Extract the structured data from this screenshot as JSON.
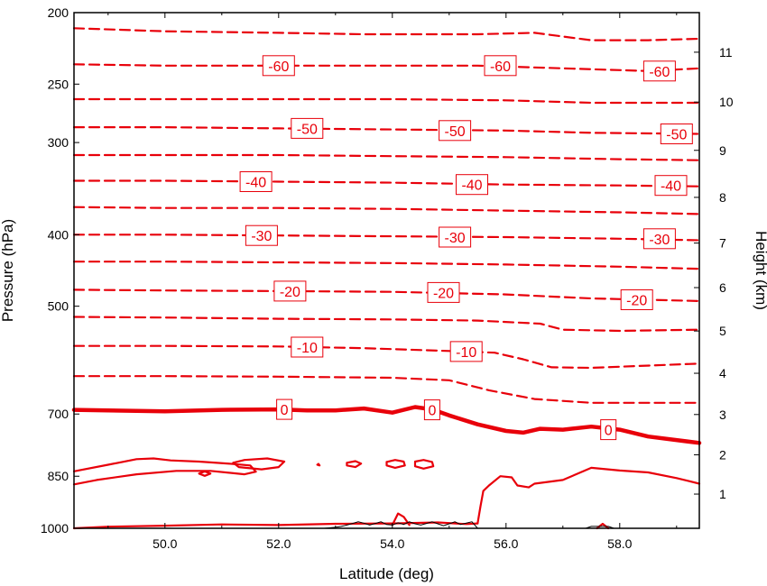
{
  "chart_data": {
    "type": "contour",
    "title": "",
    "xlabel": "Latitude (deg)",
    "ylabel_left": "Pressure (hPa)",
    "ylabel_right": "Height (km)",
    "xlim": [
      48.4,
      59.4
    ],
    "ylim_pressure": [
      1000,
      200
    ],
    "y_scale": "log-pressure",
    "grid": false,
    "x_ticks": [
      "50.0",
      "52.0",
      "54.0",
      "56.0",
      "58.0"
    ],
    "x_tick_values": [
      50,
      52,
      54,
      56,
      58
    ],
    "pressure_ticks": [
      1000,
      850,
      700,
      500,
      400,
      300,
      250,
      200
    ],
    "height_ticks": [
      1,
      2,
      3,
      4,
      5,
      6,
      7,
      8,
      9,
      10,
      11
    ],
    "height_tick_pressures": [
      898.7,
      795.0,
      701.1,
      616.4,
      540.2,
      471.8,
      410.6,
      356.0,
      307.4,
      264.4,
      226.3
    ],
    "line_color": "#e8000a",
    "terrain_color": "#000000",
    "contour_interval": 5,
    "contours": [
      {
        "level": -65,
        "points": [
          [
            48.4,
            210
          ],
          [
            50,
            212
          ],
          [
            52,
            213
          ],
          [
            53.5,
            214
          ],
          [
            54.5,
            214
          ],
          [
            55.5,
            214
          ],
          [
            56.5,
            213
          ],
          [
            57.5,
            218
          ],
          [
            58.5,
            218
          ],
          [
            59.4,
            217
          ]
        ]
      },
      {
        "level": -60,
        "points": [
          [
            48.4,
            235
          ],
          [
            50,
            236
          ],
          [
            52,
            236
          ],
          [
            54,
            236
          ],
          [
            55.5,
            236
          ],
          [
            57,
            238
          ],
          [
            58.5,
            240
          ],
          [
            59.4,
            238
          ]
        ]
      },
      {
        "level": -55,
        "points": [
          [
            48.4,
            262
          ],
          [
            50,
            262
          ],
          [
            52,
            262
          ],
          [
            54,
            262
          ],
          [
            56,
            263
          ],
          [
            57.5,
            265
          ],
          [
            59.4,
            265
          ]
        ]
      },
      {
        "level": -50,
        "points": [
          [
            48.4,
            286
          ],
          [
            50,
            286
          ],
          [
            52,
            287
          ],
          [
            54,
            288
          ],
          [
            56,
            289
          ],
          [
            57.5,
            291
          ],
          [
            59.4,
            292
          ]
        ]
      },
      {
        "level": -45,
        "points": [
          [
            48.4,
            312
          ],
          [
            50,
            312
          ],
          [
            52,
            312
          ],
          [
            54,
            313
          ],
          [
            56,
            314
          ],
          [
            58,
            316
          ],
          [
            59.4,
            317
          ]
        ]
      },
      {
        "level": -40,
        "points": [
          [
            48.4,
            338
          ],
          [
            50,
            338
          ],
          [
            52,
            339
          ],
          [
            54,
            340
          ],
          [
            56,
            342
          ],
          [
            58,
            343
          ],
          [
            59.4,
            344
          ]
        ]
      },
      {
        "level": -35,
        "points": [
          [
            48.4,
            367
          ],
          [
            50,
            368
          ],
          [
            52,
            368
          ],
          [
            54,
            369
          ],
          [
            56,
            371
          ],
          [
            58,
            373
          ],
          [
            59.4,
            375
          ]
        ]
      },
      {
        "level": -30,
        "points": [
          [
            48.4,
            400
          ],
          [
            50,
            400
          ],
          [
            52,
            401
          ],
          [
            54,
            402
          ],
          [
            56,
            403
          ],
          [
            58,
            405
          ],
          [
            59.4,
            407
          ]
        ]
      },
      {
        "level": -25,
        "points": [
          [
            48.4,
            435
          ],
          [
            50,
            435
          ],
          [
            52,
            436
          ],
          [
            54,
            437
          ],
          [
            56,
            439
          ],
          [
            58,
            442
          ],
          [
            59.4,
            445
          ]
        ]
      },
      {
        "level": -20,
        "points": [
          [
            48.4,
            475
          ],
          [
            50,
            476
          ],
          [
            52,
            477
          ],
          [
            54,
            478
          ],
          [
            56,
            482
          ],
          [
            57.5,
            488
          ],
          [
            59.4,
            492
          ]
        ]
      },
      {
        "level": -15,
        "points": [
          [
            48.4,
            517
          ],
          [
            50,
            518
          ],
          [
            52,
            520
          ],
          [
            54,
            521
          ],
          [
            55.5,
            523
          ],
          [
            56.6,
            528
          ],
          [
            57,
            538
          ],
          [
            58,
            540
          ],
          [
            59.4,
            538
          ]
        ]
      },
      {
        "level": -10,
        "points": [
          [
            48.4,
            566
          ],
          [
            50,
            566
          ],
          [
            52,
            567
          ],
          [
            53.5,
            570
          ],
          [
            55,
            575
          ],
          [
            55.8,
            578
          ],
          [
            56.3,
            590
          ],
          [
            56.8,
            605
          ],
          [
            57.5,
            606
          ],
          [
            59.4,
            598
          ]
        ]
      },
      {
        "level": -5,
        "points": [
          [
            48.4,
            622
          ],
          [
            50,
            622
          ],
          [
            52,
            623
          ],
          [
            54,
            625
          ],
          [
            55,
            630
          ],
          [
            55.7,
            650
          ],
          [
            56.5,
            668
          ],
          [
            57.5,
            676
          ],
          [
            58.5,
            676
          ],
          [
            59.4,
            676
          ]
        ]
      },
      {
        "level": 0,
        "points": [
          [
            48.4,
            691
          ],
          [
            49,
            692
          ],
          [
            50,
            694
          ],
          [
            51,
            691
          ],
          [
            52,
            690
          ],
          [
            52.5,
            692
          ],
          [
            53,
            692
          ],
          [
            53.5,
            688
          ],
          [
            54,
            697
          ],
          [
            54.4,
            685
          ],
          [
            54.7,
            690
          ],
          [
            55,
            703
          ],
          [
            55.5,
            723
          ],
          [
            56,
            738
          ],
          [
            56.3,
            742
          ],
          [
            56.6,
            733
          ],
          [
            57,
            735
          ],
          [
            57.5,
            728
          ],
          [
            58,
            735
          ],
          [
            58.5,
            751
          ],
          [
            59.4,
            766
          ]
        ]
      },
      {
        "level": 5,
        "points": [
          [
            48.4,
            837
          ],
          [
            49,
            820
          ],
          [
            49.5,
            806
          ],
          [
            49.8,
            804
          ],
          [
            50.1,
            809
          ],
          [
            50.6,
            812
          ],
          [
            51.2,
            818
          ],
          [
            51.5,
            822
          ],
          [
            51.6,
            838
          ],
          [
            51.4,
            845
          ],
          [
            50.8,
            836
          ],
          [
            50.2,
            836
          ],
          [
            49.5,
            845
          ],
          [
            48.8,
            860
          ],
          [
            48.4,
            872
          ]
        ]
      },
      {
        "level": 5,
        "points": [
          [
            50.7,
            837
          ],
          [
            50.8,
            843
          ],
          [
            50.7,
            849
          ],
          [
            50.6,
            843
          ],
          [
            50.7,
            837
          ]
        ]
      },
      {
        "level": 5,
        "points": [
          [
            51.2,
            815
          ],
          [
            51.4,
            808
          ],
          [
            51.8,
            804
          ],
          [
            52.1,
            812
          ],
          [
            52,
            826
          ],
          [
            51.7,
            832
          ],
          [
            51.3,
            826
          ],
          [
            51.2,
            815
          ]
        ]
      },
      {
        "level": 5,
        "points": [
          [
            52.7,
            818
          ],
          [
            52.72,
            822
          ],
          [
            52.68,
            820
          ],
          [
            52.7,
            818
          ]
        ]
      },
      {
        "level": 5,
        "points": [
          [
            53.9,
            813
          ],
          [
            54.05,
            808
          ],
          [
            54.2,
            812
          ],
          [
            54.22,
            822
          ],
          [
            54.05,
            828
          ],
          [
            53.9,
            822
          ],
          [
            53.9,
            813
          ]
        ]
      },
      {
        "level": 5,
        "points": [
          [
            54.4,
            812
          ],
          [
            54.55,
            808
          ],
          [
            54.7,
            813
          ],
          [
            54.72,
            824
          ],
          [
            54.55,
            830
          ],
          [
            54.4,
            824
          ],
          [
            54.4,
            812
          ]
        ]
      },
      {
        "level": 5,
        "points": [
          [
            53.2,
            815
          ],
          [
            53.35,
            811
          ],
          [
            53.45,
            817
          ],
          [
            53.35,
            826
          ],
          [
            53.2,
            822
          ],
          [
            53.2,
            815
          ]
        ]
      },
      {
        "level": 5,
        "points": [
          [
            55.5,
            985
          ],
          [
            55.55,
            935
          ],
          [
            55.6,
            890
          ],
          [
            55.7,
            875
          ],
          [
            55.9,
            850
          ],
          [
            56.1,
            853
          ],
          [
            56.2,
            875
          ],
          [
            56.4,
            880
          ],
          [
            56.5,
            870
          ],
          [
            57,
            860
          ],
          [
            57.5,
            828
          ],
          [
            58,
            835
          ],
          [
            58.5,
            840
          ],
          [
            59,
            855
          ],
          [
            59.4,
            870
          ]
        ]
      },
      {
        "level": 10,
        "points": [
          [
            48.4,
            1000
          ],
          [
            49,
            995
          ],
          [
            50,
            992
          ],
          [
            51,
            988
          ],
          [
            52,
            990
          ],
          [
            53,
            986
          ],
          [
            54,
            985
          ],
          [
            54.8,
            982
          ],
          [
            55.3,
            987
          ],
          [
            55.5,
            985
          ]
        ]
      },
      {
        "level": 10,
        "points": [
          [
            54,
            990
          ],
          [
            54.1,
            955
          ],
          [
            54.2,
            965
          ],
          [
            54.3,
            990
          ]
        ]
      },
      {
        "level": 10,
        "points": [
          [
            57.6,
            1000
          ],
          [
            57.7,
            986
          ],
          [
            57.8,
            1000
          ]
        ]
      }
    ],
    "contour_labels": [
      {
        "text": "-60",
        "lat": 52.0,
        "p": 236
      },
      {
        "text": "-60",
        "lat": 55.9,
        "p": 236
      },
      {
        "text": "-60",
        "lat": 58.7,
        "p": 240
      },
      {
        "text": "-50",
        "lat": 52.5,
        "p": 287
      },
      {
        "text": "-50",
        "lat": 55.1,
        "p": 289
      },
      {
        "text": "-50",
        "lat": 59.0,
        "p": 292
      },
      {
        "text": "-40",
        "lat": 51.6,
        "p": 339
      },
      {
        "text": "-40",
        "lat": 55.4,
        "p": 342
      },
      {
        "text": "-40",
        "lat": 58.9,
        "p": 343
      },
      {
        "text": "-30",
        "lat": 51.7,
        "p": 401
      },
      {
        "text": "-30",
        "lat": 55.1,
        "p": 403
      },
      {
        "text": "-30",
        "lat": 58.7,
        "p": 405
      },
      {
        "text": "-20",
        "lat": 52.2,
        "p": 477
      },
      {
        "text": "-20",
        "lat": 54.9,
        "p": 479
      },
      {
        "text": "-20",
        "lat": 58.3,
        "p": 490
      },
      {
        "text": "-10",
        "lat": 52.5,
        "p": 568
      },
      {
        "text": "-10",
        "lat": 55.3,
        "p": 576
      },
      {
        "text": "0",
        "lat": 52.1,
        "p": 690
      },
      {
        "text": "0",
        "lat": 54.7,
        "p": 691
      },
      {
        "text": "0",
        "lat": 57.8,
        "p": 735
      }
    ],
    "terrain_lat": [
      52.8,
      53.0,
      53.1,
      53.2,
      53.3,
      53.4,
      53.5,
      53.6,
      53.7,
      53.8,
      53.9,
      54.0,
      54.1,
      54.2,
      54.3,
      54.4,
      54.5,
      54.6,
      54.7,
      54.8,
      54.9,
      55.0,
      55.1,
      55.2,
      55.3,
      55.4,
      55.5,
      55.6
    ],
    "terrain_p": [
      1000,
      997,
      994,
      990,
      985,
      980,
      984,
      990,
      985,
      980,
      988,
      990,
      983,
      988,
      980,
      986,
      990,
      985,
      980,
      986,
      992,
      986,
      980,
      988,
      984,
      980,
      1000,
      1000
    ],
    "terrain2_lat": [
      57.4,
      57.5,
      57.6,
      57.7,
      57.8,
      57.9
    ],
    "terrain2_p": [
      1000,
      994,
      994,
      994,
      994,
      1000
    ]
  }
}
